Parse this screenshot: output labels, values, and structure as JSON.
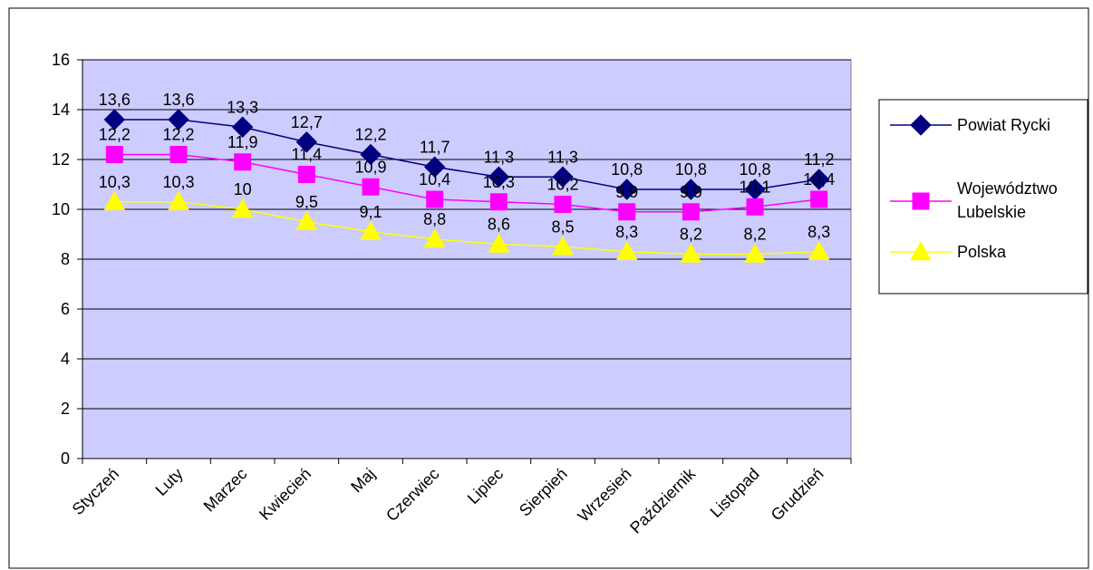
{
  "chart_data": {
    "type": "line",
    "title": "",
    "xlabel": "",
    "ylabel": "",
    "ylim": [
      0,
      16
    ],
    "yticks": [
      0,
      2,
      4,
      6,
      8,
      10,
      12,
      14,
      16
    ],
    "grid": true,
    "legend_position": "right",
    "plot_background": "#ccccff",
    "categories": [
      "Styczeń",
      "Luty",
      "Marzec",
      "Kwiecień",
      "Maj",
      "Czerwiec",
      "Lipiec",
      "Sierpień",
      "Wrzesień",
      "Październik",
      "Listopad",
      "Grudzień"
    ],
    "series": [
      {
        "name": "Powiat Rycki",
        "color": "#000080",
        "marker": "diamond",
        "values": [
          13.6,
          13.6,
          13.3,
          12.7,
          12.2,
          11.7,
          11.3,
          11.3,
          10.8,
          10.8,
          10.8,
          11.2
        ],
        "labels": [
          "13,6",
          "13,6",
          "13,3",
          "12,7",
          "12,2",
          "11,7",
          "11,3",
          "11,3",
          "10,8",
          "10,8",
          "10,8",
          "11,2"
        ]
      },
      {
        "name_lines": [
          "Województwo",
          "Lubelskie"
        ],
        "color": "#ff00ff",
        "marker": "square",
        "values": [
          12.2,
          12.2,
          11.9,
          11.4,
          10.9,
          10.4,
          10.3,
          10.2,
          9.9,
          9.9,
          10.1,
          10.4
        ],
        "labels": [
          "12,2",
          "12,2",
          "11,9",
          "11,4",
          "10,9",
          "10,4",
          "10,3",
          "10,2",
          "9,9",
          "9,9",
          "10,1",
          "10,4"
        ]
      },
      {
        "name": "Polska",
        "color": "#ffff00",
        "marker": "triangle",
        "values": [
          10.3,
          10.3,
          10.0,
          9.5,
          9.1,
          8.8,
          8.6,
          8.5,
          8.3,
          8.2,
          8.2,
          8.3
        ],
        "labels": [
          "10,3",
          "10,3",
          "10",
          "9,5",
          "9,1",
          "8,8",
          "8,6",
          "8,5",
          "8,3",
          "8,2",
          "8,2",
          "8,3"
        ]
      }
    ]
  }
}
